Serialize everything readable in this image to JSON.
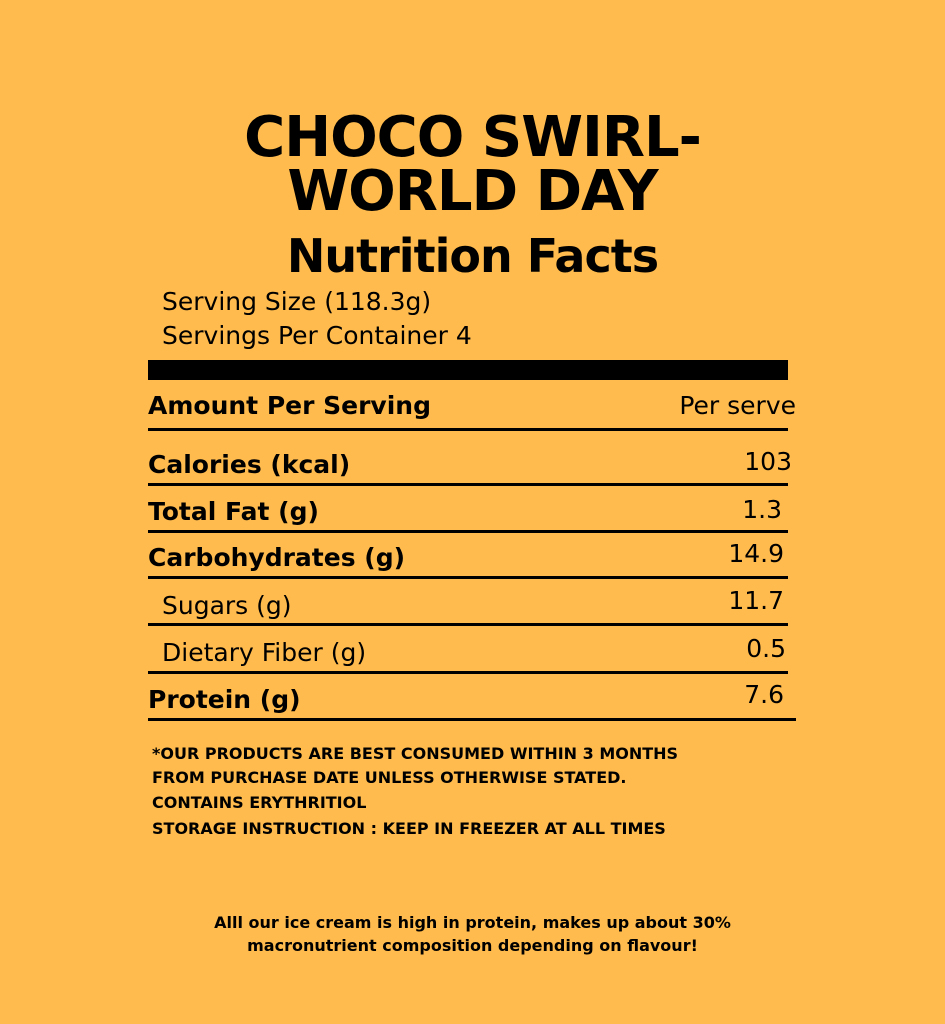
{
  "header": {
    "title_line1": "CHOCO SWIRL-",
    "title_line2": "WORLD DAY",
    "subtitle": "Nutrition Facts"
  },
  "serving": {
    "size": "Serving Size (118.3g)",
    "per_container": "Servings Per Container 4"
  },
  "table": {
    "header_label": "Amount Per Serving",
    "header_value": "Per serve",
    "rows": [
      {
        "label": "Calories (kcal)",
        "value": "103"
      },
      {
        "label": "Total Fat (g)",
        "value": "1.3"
      },
      {
        "label": "Carbohydrates (g)",
        "value": "14.9"
      },
      {
        "label": "Sugars (g)",
        "value": "11.7"
      },
      {
        "label": "Dietary Fiber (g)",
        "value": "0.5"
      },
      {
        "label": "Protein (g)",
        "value": "7.6"
      }
    ]
  },
  "notes": [
    "*OUR PRODUCTS ARE BEST CONSUMED WITHIN 3 MONTHS",
    "FROM PURCHASE DATE UNLESS OTHERWISE STATED.",
    "CONTAINS ERYTHRITIOL",
    "STORAGE INSTRUCTION : KEEP IN FREEZER AT ALL TIMES"
  ],
  "footer": [
    "Alll our ice cream is high in protein, makes up about 30%",
    "macronutrient composition depending on flavour!"
  ],
  "colors": {
    "background": "#FFBB4D",
    "text": "#000000"
  }
}
